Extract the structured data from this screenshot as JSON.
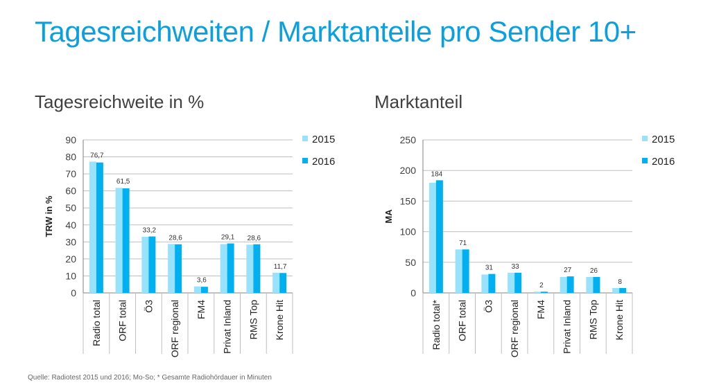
{
  "title": "Tagesreichweiten / Marktanteile pro Sender 10+",
  "source": "Quelle: Radiotest 2015 und 2016; Mo-So; * Gesamte Radiohördauer in Minuten",
  "colors": {
    "series_2015": "#99e2fb",
    "series_2016": "#00b0f0",
    "grid": "#bfbfbf",
    "axis": "#808080"
  },
  "chart_data": [
    {
      "type": "bar",
      "title": "Tagesreichweite in %",
      "ylabel": "TRW in %",
      "xlabel": "",
      "ylim": [
        0,
        90
      ],
      "yticks": [
        0,
        10,
        20,
        30,
        40,
        50,
        60,
        70,
        80,
        90
      ],
      "categories": [
        "Radio total",
        "ORF total",
        "Ö3",
        "ORF regional",
        "FM4",
        "Privat Inland",
        "RMS Top",
        "Krone Hit"
      ],
      "series": [
        {
          "name": "2015",
          "values": [
            77.2,
            61.8,
            33.0,
            28.8,
            3.8,
            28.7,
            28.4,
            11.9
          ]
        },
        {
          "name": "2016",
          "values": [
            76.7,
            61.5,
            33.2,
            28.6,
            3.6,
            29.1,
            28.6,
            11.7
          ]
        }
      ],
      "data_labels": [
        "76,7",
        "61,5",
        "33,2",
        "28,6",
        "3,6",
        "29,1",
        "28,6",
        "11,7"
      ],
      "legend": "top-right"
    },
    {
      "type": "bar",
      "title": "Marktanteil",
      "ylabel": "MA",
      "xlabel": "",
      "ylim": [
        0,
        250
      ],
      "yticks": [
        0,
        50,
        100,
        150,
        200,
        250
      ],
      "categories": [
        "Radio total*",
        "ORF total",
        "Ö3",
        "ORF regional",
        "FM4",
        "Privat Inland",
        "RMS Top",
        "Krone Hit"
      ],
      "series": [
        {
          "name": "2015",
          "values": [
            180,
            71,
            30,
            33,
            2,
            26,
            26,
            8
          ]
        },
        {
          "name": "2016",
          "values": [
            184,
            71,
            31,
            33,
            2,
            27,
            26,
            8
          ]
        }
      ],
      "data_labels": [
        "184",
        "71",
        "31",
        "33",
        "2",
        "27",
        "26",
        "8"
      ],
      "legend": "top-right"
    }
  ]
}
